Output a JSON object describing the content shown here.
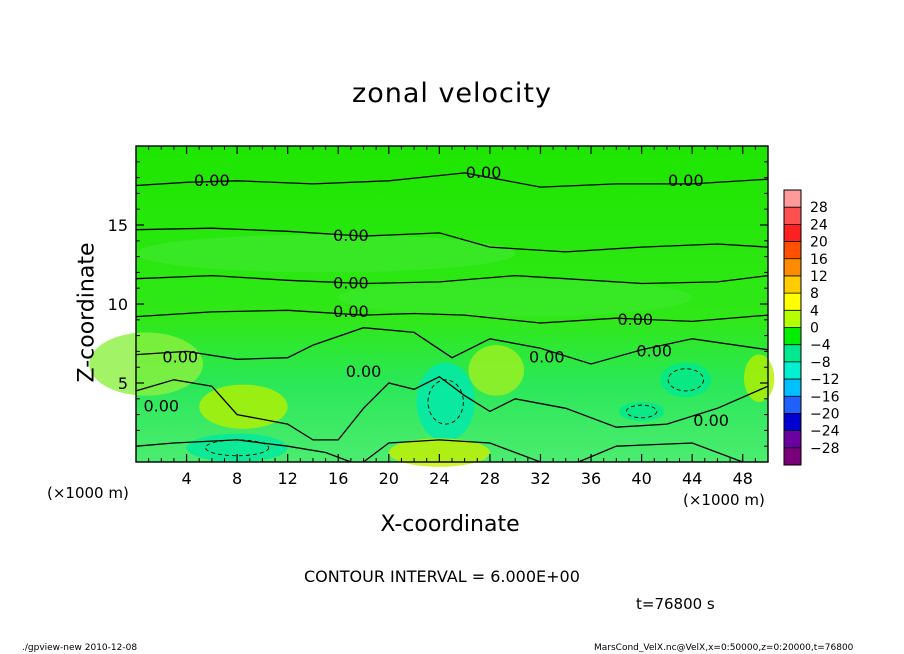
{
  "chart_data": {
    "type": "heatmap",
    "title": "zonal velocity",
    "xlabel": "X-coordinate",
    "ylabel": "Z-coordinate",
    "x_unit_label": "(×1000 m)",
    "xlim": [
      0,
      50
    ],
    "ylim": [
      0,
      20
    ],
    "x_ticks": [
      4,
      8,
      12,
      16,
      20,
      24,
      28,
      32,
      36,
      40,
      44,
      48
    ],
    "y_ticks": [
      5,
      10,
      15
    ],
    "colorbar": {
      "levels": [
        28,
        24,
        20,
        16,
        12,
        8,
        4,
        0,
        -4,
        -8,
        -12,
        -16,
        -20,
        -24,
        -28
      ],
      "colors": [
        "#ff9a9a",
        "#ff5050",
        "#ff2020",
        "#ff5000",
        "#ff8c00",
        "#ffcc00",
        "#ffff00",
        "#b4ff00",
        "#00ee00",
        "#00e890",
        "#00f0d0",
        "#00c0ff",
        "#2060ff",
        "#0000d0",
        "#6a00a0",
        "#7a007a"
      ]
    },
    "contour_labels": [
      "0.00",
      "0.00",
      "0.00",
      "0.00",
      "0.00",
      "0.00",
      "0.00",
      "0.00",
      "0.00",
      "0.00",
      "0.00",
      "0.00",
      "0.00"
    ],
    "contour_interval_text": "CONTOUR INTERVAL = 6.000E+00",
    "time_text": "t=76800 s"
  },
  "footer": {
    "left": "./gpview-new   2010-12-08",
    "right": "MarsCond_VelX.nc@VelX,x=0:50000,z=0:20000,t=76800"
  }
}
